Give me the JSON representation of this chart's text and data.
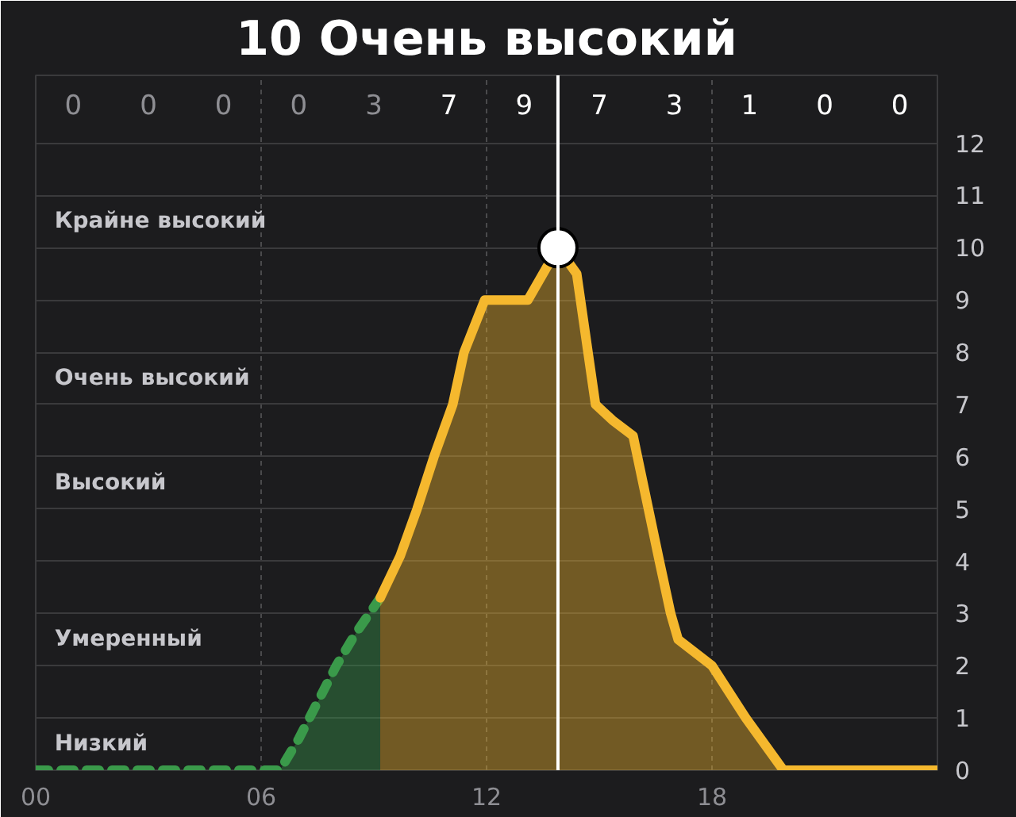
{
  "chart_data": {
    "type": "area",
    "title": "10 Очень высокий",
    "xlim": [
      0,
      24
    ],
    "ylim": [
      0,
      13.3
    ],
    "xticks": [
      {
        "value": 0,
        "label": "00"
      },
      {
        "value": 6,
        "label": "06"
      },
      {
        "value": 12,
        "label": "12"
      },
      {
        "value": 18,
        "label": "18"
      }
    ],
    "yticks": [
      0,
      1,
      2,
      3,
      4,
      5,
      6,
      7,
      8,
      9,
      10,
      11,
      12
    ],
    "grid": true,
    "series": [
      {
        "color": "#3a9a4a",
        "line_style": "dashed",
        "x": [
          0,
          6.5,
          7,
          7.5,
          8,
          8.5,
          9.17
        ],
        "values": [
          0,
          0,
          0.6,
          1.3,
          2,
          2.6,
          3.3
        ]
      },
      {
        "color": "#f5b82e",
        "line_style": "solid",
        "x": [
          9.17,
          9.7,
          10.15,
          10.6,
          11.1,
          11.4,
          11.95,
          13.1,
          13.9,
          14.4,
          14.9,
          15.35,
          15.9,
          16.6,
          16.9,
          17.1,
          18,
          18.9,
          19.9,
          24
        ],
        "values": [
          3.3,
          4.1,
          5,
          6,
          7,
          8,
          9,
          9,
          10,
          9.5,
          7,
          6.7,
          6.4,
          4,
          3,
          2.5,
          2,
          1,
          0,
          0
        ]
      },
      {
        "type": "scatter",
        "color": "#ffffff",
        "marker": "circle",
        "x": [
          13.9
        ],
        "values": [
          10
        ]
      }
    ],
    "ref_lines": [
      {
        "axis": "x",
        "value": 13.9,
        "color": "#ffffff"
      }
    ],
    "annotations": [
      "0",
      "0",
      "0",
      "0",
      "3",
      "7",
      "9",
      "7",
      "3",
      "1",
      "0",
      "0",
      "Крайне высокий",
      "Очень высокий",
      "Высокий",
      "Умеренный",
      "Низкий"
    ]
  }
}
